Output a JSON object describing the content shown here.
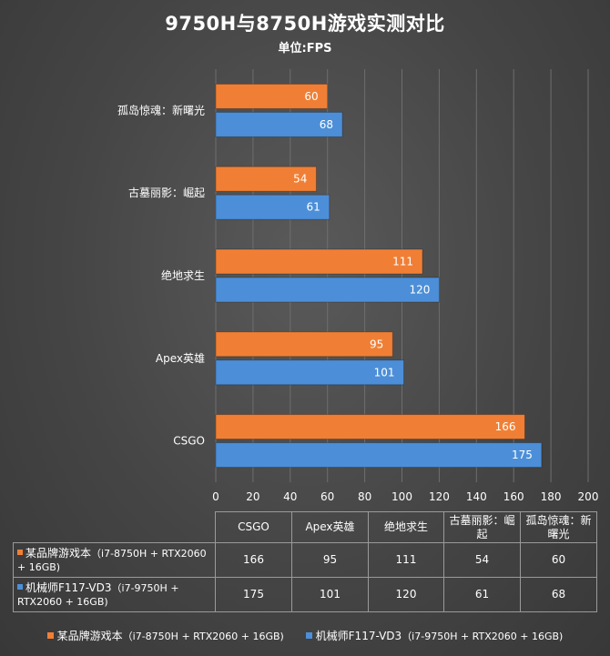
{
  "header": {
    "title": "9750H与8750H游戏实测对比",
    "subtitle": "单位:FPS"
  },
  "chart_data": {
    "type": "bar",
    "orientation": "horizontal",
    "title": "9750H与8750H游戏实测对比",
    "subtitle": "单位:FPS",
    "categories": [
      "孤岛惊魂：新曙光",
      "古墓丽影：崛起",
      "绝地求生",
      "Apex英雄",
      "CSGO"
    ],
    "x_ticks": [
      "0",
      "20",
      "40",
      "60",
      "80",
      "100",
      "120",
      "140",
      "160",
      "180",
      "200"
    ],
    "xlim": [
      0,
      200
    ],
    "grid": true,
    "legend_position": "bottom",
    "series": [
      {
        "name": "某品牌游戏本",
        "spec": "（i7-8750H + RTX2060 + 16GB)",
        "color": "#f07f35",
        "values": [
          60,
          54,
          111,
          95,
          166
        ]
      },
      {
        "name": "机械师F117-VD3",
        "spec": "（i7-9750H + RTX2060 + 16GB)",
        "color": "#4c8fd8",
        "values": [
          68,
          61,
          120,
          101,
          175
        ]
      }
    ]
  },
  "table": {
    "columns": [
      "CSGO",
      "Apex英雄",
      "绝地求生",
      "古墓丽影：崛起",
      "孤岛惊魂：新曙光"
    ],
    "rows": [
      {
        "name": "某品牌游戏本",
        "spec": "（i7-8750H + RTX2060 + 16GB)",
        "values": [
          "166",
          "95",
          "111",
          "54",
          "60"
        ]
      },
      {
        "name": "机械师F117-VD3",
        "spec": "（i7-9750H + RTX2060 + 16GB)",
        "values": [
          "175",
          "101",
          "120",
          "61",
          "68"
        ]
      }
    ]
  },
  "legend": {
    "items": [
      {
        "name": "某品牌游戏本",
        "spec": "（i7-8750H + RTX2060 + 16GB)"
      },
      {
        "name": "机械师F117-VD3",
        "spec": "（i7-9750H + RTX2060 + 16GB)"
      }
    ]
  }
}
